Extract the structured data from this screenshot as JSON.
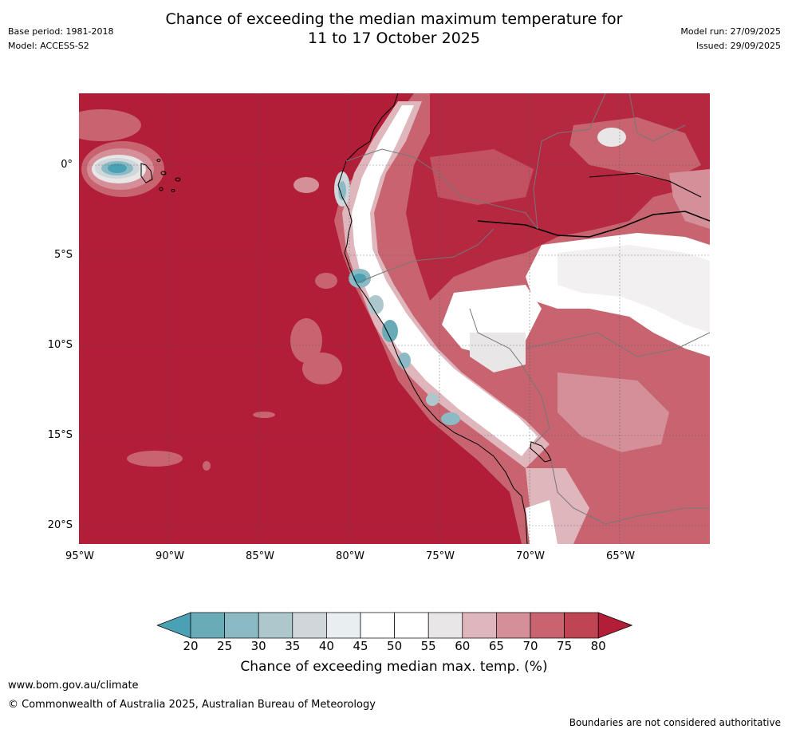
{
  "title_line1": "Chance of exceeding the median maximum temperature for",
  "title_line2": "11 to 17 October 2025",
  "base_period": "Base period: 1981-2018",
  "model": "Model: ACCESS-S2",
  "model_run": "Model run: 27/09/2025",
  "issued": "Issued: 29/09/2025",
  "lat_labels": [
    "0°",
    "5°S",
    "10°S",
    "15°S",
    "20°S"
  ],
  "lon_labels": [
    "95°W",
    "90°W",
    "85°W",
    "80°W",
    "75°W",
    "70°W",
    "65°W"
  ],
  "colorbar_ticks": [
    "20",
    "25",
    "30",
    "35",
    "40",
    "45",
    "50",
    "55",
    "60",
    "65",
    "70",
    "75",
    "80"
  ],
  "colorbar_title": "Chance of exceeding median max. temp. (%)",
  "colorbar_colors": [
    "#6aabb8",
    "#8cbac4",
    "#adc8cd",
    "#cfd7da",
    "#e9eef1",
    "#ffffff",
    "#ffffff",
    "#e9e6e8",
    "#e0b6bd",
    "#d48f98",
    "#c8646f",
    "#bf4553"
  ],
  "color_low": "#4aa1b3",
  "color_high": "#b21d38",
  "footer_url": "www.bom.gov.au/climate",
  "footer_copyright": "© Commonwealth of Australia 2025, Australian Bureau of Meteorology",
  "footer_note": "Boundaries are not considered authoritative"
}
